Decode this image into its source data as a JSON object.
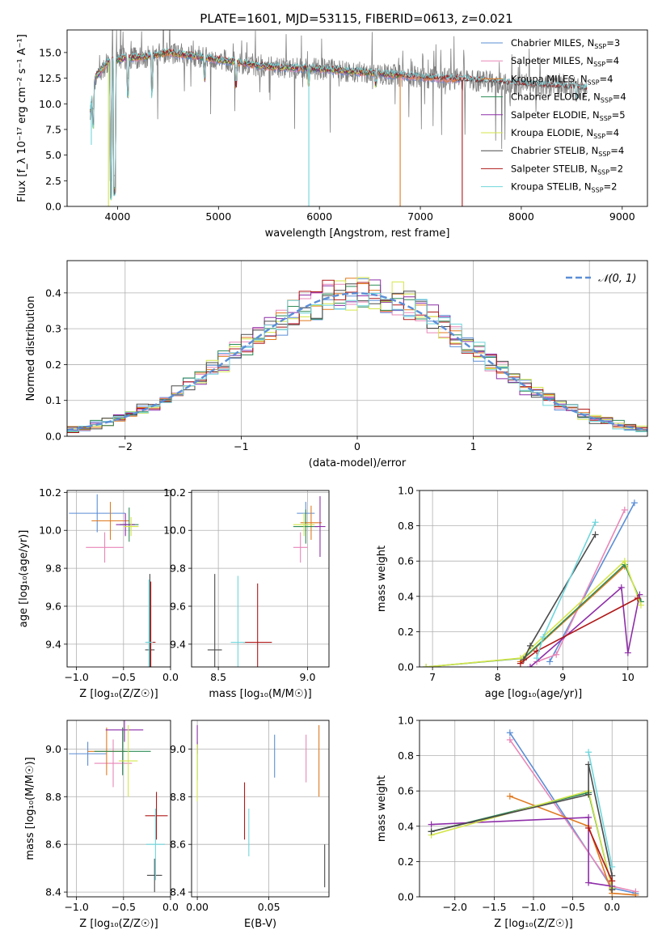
{
  "figure_title": "PLATE=1601, MJD=53115, FIBERID=0613, z=0.021",
  "colors": {
    "chabrier_miles": "#5b8ed6",
    "salpeter_miles": "#e887b8",
    "kroupa_miles": "#e07a20",
    "chabrier_elodie": "#2e8b57",
    "salpeter_elodie": "#8e2ea8",
    "kroupa_elodie": "#d4e64a",
    "chabrier_stelib": "#4a4a4a",
    "salpeter_stelib": "#b01818",
    "kroupa_stelib": "#6fd6dc",
    "data": "#808080"
  },
  "chart_data": [
    {
      "id": "spectrum",
      "type": "line",
      "xlabel": "wavelength [Angstrom, rest frame]",
      "ylabel": "Flux [f_λ 10⁻¹⁷ erg cm⁻² s⁻¹ A⁻¹]",
      "xlim": [
        3500,
        9250
      ],
      "ylim": [
        0,
        17.2
      ],
      "xticks": [
        4000,
        5000,
        6000,
        7000,
        8000,
        9000
      ],
      "yticks": [
        0.0,
        2.5,
        5.0,
        7.5,
        10.0,
        12.5,
        15.0
      ],
      "legend_loc": "right",
      "legend": [
        {
          "label": "Chabrier MILES, N",
          "sub": "SSP",
          "eq": "=3",
          "color_key": "chabrier_miles"
        },
        {
          "label": "Salpeter MILES, N",
          "sub": "SSP",
          "eq": "=4",
          "color_key": "salpeter_miles"
        },
        {
          "label": "Kroupa MILES, N",
          "sub": "SSP",
          "eq": "=4",
          "color_key": "kroupa_miles"
        },
        {
          "label": "Chabrier ELODIE, N",
          "sub": "SSP",
          "eq": "=4",
          "color_key": "chabrier_elodie"
        },
        {
          "label": "Salpeter ELODIE, N",
          "sub": "SSP",
          "eq": "=5",
          "color_key": "salpeter_elodie"
        },
        {
          "label": "Kroupa ELODIE, N",
          "sub": "SSP",
          "eq": "=4",
          "color_key": "kroupa_elodie"
        },
        {
          "label": "Chabrier STELIB, N",
          "sub": "SSP",
          "eq": "=4",
          "color_key": "chabrier_stelib"
        },
        {
          "label": "Salpeter STELIB, N",
          "sub": "SSP",
          "eq": "=2",
          "color_key": "salpeter_stelib"
        },
        {
          "label": "Kroupa STELIB, N",
          "sub": "SSP",
          "eq": "=2",
          "color_key": "kroupa_stelib"
        }
      ],
      "continuum": [
        [
          3730,
          9.5
        ],
        [
          3780,
          12.6
        ],
        [
          3900,
          14.0
        ],
        [
          4050,
          14.4
        ],
        [
          4300,
          14.6
        ],
        [
          4500,
          15.0
        ],
        [
          5000,
          14.3
        ],
        [
          5500,
          13.6
        ],
        [
          6000,
          13.4
        ],
        [
          6500,
          13.0
        ],
        [
          7000,
          12.6
        ],
        [
          7500,
          12.3
        ],
        [
          8000,
          11.9
        ],
        [
          8500,
          11.6
        ],
        [
          8650,
          11.5
        ]
      ],
      "models_end": {
        "miles": 7400,
        "elodie": 6800,
        "stelib": 8650
      },
      "model_dips": [
        [
          3934,
          1.0
        ],
        [
          3969,
          1.5
        ],
        [
          3760,
          8.0
        ],
        [
          4102,
          11.0
        ],
        [
          4340,
          11.0
        ],
        [
          4861,
          12.5
        ],
        [
          5175,
          12.0
        ],
        [
          5892,
          12.2
        ],
        [
          6563,
          12.0
        ],
        [
          8542,
          10.5
        ],
        [
          8662,
          10.5
        ]
      ],
      "model_spikes": [
        [
          3910,
          0.0,
          "kroupa_elodie"
        ],
        [
          5895,
          0.0,
          "kroupa_stelib"
        ],
        [
          6800,
          0.0,
          "kroupa_miles"
        ],
        [
          7415,
          0.0,
          "salpeter_stelib"
        ],
        [
          3740,
          6.0,
          "kroupa_stelib"
        ]
      ]
    },
    {
      "id": "residual_hist",
      "type": "histogram",
      "xlabel": "(data-model)/error",
      "ylabel": "Normed distribution",
      "xlim": [
        -2.5,
        2.5
      ],
      "ylim": [
        0,
        0.49
      ],
      "xticks": [
        -2,
        -1,
        0,
        1,
        2
      ],
      "yticks": [
        0.0,
        0.1,
        0.2,
        0.3,
        0.4
      ],
      "legend_loc": "upper right",
      "normal_label": "𝒩(0, 1)",
      "bin_width": 0.1
    },
    {
      "id": "age_vs_z",
      "type": "scatter",
      "xlabel": "Z [log₁₀(Z/Z☉)]",
      "ylabel": "age  [log₁₀(age/yr)]",
      "xlim": [
        -1.1,
        0.0
      ],
      "ylim": [
        9.28,
        10.21
      ],
      "xticks": [
        -1.0,
        -0.5,
        0.0
      ],
      "yticks": [
        9.4,
        9.6,
        9.8,
        10.0,
        10.2
      ],
      "points": [
        {
          "x": -0.78,
          "y": 10.09,
          "xerr": 0.3,
          "yerr": 0.1,
          "color_key": "chabrier_miles"
        },
        {
          "x": -0.7,
          "y": 9.91,
          "xerr": 0.2,
          "yerr": 0.08,
          "color_key": "salpeter_miles"
        },
        {
          "x": -0.64,
          "y": 10.05,
          "xerr": 0.2,
          "yerr": 0.1,
          "color_key": "kroupa_miles"
        },
        {
          "x": -0.44,
          "y": 10.03,
          "xerr": 0.1,
          "yerr": 0.09,
          "color_key": "chabrier_elodie"
        },
        {
          "x": -0.48,
          "y": 10.03,
          "xerr": 0.1,
          "yerr": 0.06,
          "color_key": "salpeter_elodie"
        },
        {
          "x": -0.42,
          "y": 10.02,
          "xerr": 0.08,
          "yerr": 0.05,
          "color_key": "kroupa_elodie"
        },
        {
          "x": -0.22,
          "y": 9.37,
          "xerr": 0.05,
          "yerr": 0.4,
          "color_key": "chabrier_stelib"
        },
        {
          "x": -0.21,
          "y": 9.41,
          "xerr": 0.05,
          "yerr": 0.32,
          "color_key": "salpeter_stelib"
        },
        {
          "x": -0.23,
          "y": 9.41,
          "xerr": 0.04,
          "yerr": 0.33,
          "color_key": "kroupa_stelib"
        }
      ]
    },
    {
      "id": "age_vs_mass",
      "type": "scatter",
      "xlabel": "mass [log₁₀(M/M☉)]",
      "ylabel": "",
      "xlim": [
        8.35,
        9.12
      ],
      "ylim": [
        9.28,
        10.21
      ],
      "xticks": [
        8.5,
        9.0
      ],
      "yticks": [
        9.4,
        9.6,
        9.8,
        10.0,
        10.2
      ],
      "points": [
        {
          "x": 8.99,
          "y": 10.09,
          "xerr": 0.05,
          "yerr": 0.06,
          "color_key": "chabrier_miles"
        },
        {
          "x": 8.96,
          "y": 9.91,
          "xerr": 0.04,
          "yerr": 0.08,
          "color_key": "salpeter_miles"
        },
        {
          "x": 9.02,
          "y": 10.04,
          "xerr": 0.06,
          "yerr": 0.09,
          "color_key": "kroupa_miles"
        },
        {
          "x": 8.99,
          "y": 10.02,
          "xerr": 0.07,
          "yerr": 0.09,
          "color_key": "chabrier_elodie"
        },
        {
          "x": 9.07,
          "y": 10.02,
          "xerr": 0.03,
          "yerr": 0.16,
          "color_key": "salpeter_elodie"
        },
        {
          "x": 8.98,
          "y": 10.03,
          "xerr": 0.06,
          "yerr": 0.06,
          "color_key": "kroupa_elodie"
        },
        {
          "x": 8.48,
          "y": 9.37,
          "xerr": 0.04,
          "yerr": 0.4,
          "color_key": "chabrier_stelib"
        },
        {
          "x": 8.72,
          "y": 9.41,
          "xerr": 0.08,
          "yerr": 0.31,
          "color_key": "salpeter_stelib"
        },
        {
          "x": 8.61,
          "y": 9.41,
          "xerr": 0.04,
          "yerr": 0.35,
          "color_key": "kroupa_stelib"
        }
      ]
    },
    {
      "id": "weight_vs_age",
      "type": "line",
      "xlabel": "age  [log₁₀(age/yr)]",
      "ylabel": "mass weight",
      "xlim": [
        6.8,
        10.3
      ],
      "ylim": [
        0,
        1.0
      ],
      "xticks": [
        7,
        8,
        9,
        10
      ],
      "yticks": [
        0.0,
        0.2,
        0.4,
        0.6,
        0.8,
        1.0
      ],
      "series": [
        {
          "color_key": "chabrier_miles",
          "points": [
            [
              8.8,
              0.03
            ],
            [
              10.1,
              0.93
            ]
          ]
        },
        {
          "color_key": "salpeter_miles",
          "points": [
            [
              8.6,
              0.03
            ],
            [
              8.9,
              0.07
            ],
            [
              9.95,
              0.89
            ]
          ]
        },
        {
          "color_key": "kroupa_miles",
          "points": [
            [
              8.35,
              0.03
            ],
            [
              9.95,
              0.57
            ]
          ]
        },
        {
          "color_key": "chabrier_elodie",
          "points": [
            [
              6.9,
              0.0
            ],
            [
              8.4,
              0.05
            ],
            [
              9.95,
              0.58
            ],
            [
              10.2,
              0.37
            ]
          ]
        },
        {
          "color_key": "salpeter_elodie",
          "points": [
            [
              8.5,
              0.0
            ],
            [
              9.9,
              0.45
            ],
            [
              10.0,
              0.08
            ],
            [
              10.18,
              0.41
            ]
          ]
        },
        {
          "color_key": "kroupa_elodie",
          "points": [
            [
              6.9,
              0.0
            ],
            [
              8.35,
              0.05
            ],
            [
              9.95,
              0.6
            ],
            [
              10.2,
              0.35
            ]
          ]
        },
        {
          "color_key": "chabrier_stelib",
          "points": [
            [
              8.4,
              0.04
            ],
            [
              8.5,
              0.12
            ],
            [
              9.5,
              0.75
            ]
          ]
        },
        {
          "color_key": "salpeter_stelib",
          "points": [
            [
              8.35,
              0.02
            ],
            [
              8.6,
              0.09
            ],
            [
              10.15,
              0.39
            ]
          ]
        },
        {
          "color_key": "kroupa_stelib",
          "points": [
            [
              8.6,
              0.05
            ],
            [
              8.7,
              0.17
            ],
            [
              9.5,
              0.82
            ]
          ]
        }
      ]
    },
    {
      "id": "mass_vs_z",
      "type": "scatter",
      "xlabel": "Z [log₁₀(Z/Z☉)]",
      "ylabel": "mass [log₁₀(M/M☉)]",
      "xlim": [
        -1.1,
        0.0
      ],
      "ylim": [
        8.38,
        9.12
      ],
      "xticks": [
        -1.0,
        -0.5,
        0.0
      ],
      "yticks": [
        8.4,
        8.6,
        8.8,
        9.0
      ],
      "points": [
        {
          "x": -0.88,
          "y": 8.98,
          "xerr": 0.2,
          "yerr": 0.05,
          "color_key": "chabrier_miles"
        },
        {
          "x": -0.61,
          "y": 8.94,
          "xerr": 0.2,
          "yerr": 0.1,
          "color_key": "salpeter_miles"
        },
        {
          "x": -0.68,
          "y": 8.99,
          "xerr": 0.2,
          "yerr": 0.1,
          "color_key": "kroupa_miles"
        },
        {
          "x": -0.51,
          "y": 8.99,
          "xerr": 0.3,
          "yerr": 0.1,
          "color_key": "chabrier_elodie"
        },
        {
          "x": -0.49,
          "y": 9.08,
          "xerr": 0.2,
          "yerr": 0.05,
          "color_key": "salpeter_elodie"
        },
        {
          "x": -0.45,
          "y": 8.95,
          "xerr": 0.1,
          "yerr": 0.15,
          "color_key": "kroupa_elodie"
        },
        {
          "x": -0.17,
          "y": 8.47,
          "xerr": 0.08,
          "yerr": 0.07,
          "color_key": "chabrier_stelib"
        },
        {
          "x": -0.15,
          "y": 8.72,
          "xerr": 0.12,
          "yerr": 0.1,
          "color_key": "salpeter_stelib"
        },
        {
          "x": -0.16,
          "y": 8.6,
          "xerr": 0.1,
          "yerr": 0.15,
          "color_key": "kroupa_stelib"
        }
      ]
    },
    {
      "id": "mass_vs_ebv",
      "type": "scatter",
      "xlabel": "E(B-V)",
      "ylabel": "",
      "xlim": [
        -0.004,
        0.092
      ],
      "ylim": [
        8.38,
        9.12
      ],
      "xticks": [
        0.0,
        0.05
      ],
      "yticks": [
        8.4,
        8.6,
        8.8,
        9.0
      ],
      "points": [
        {
          "x": 0.054,
          "y": 8.97,
          "xerr": 0.0,
          "yerr": 0.09,
          "color_key": "chabrier_miles"
        },
        {
          "x": 0.076,
          "y": 8.96,
          "xerr": 0.0,
          "yerr": 0.1,
          "color_key": "salpeter_miles"
        },
        {
          "x": 0.085,
          "y": 8.95,
          "xerr": 0.0,
          "yerr": 0.15,
          "color_key": "kroupa_miles"
        },
        {
          "x": 0.0,
          "y": 8.95,
          "xerr": 0.0,
          "yerr": 0.08,
          "color_key": "chabrier_elodie"
        },
        {
          "x": 0.0,
          "y": 9.04,
          "xerr": 0.0,
          "yerr": 0.06,
          "color_key": "salpeter_elodie"
        },
        {
          "x": 0.0,
          "y": 8.9,
          "xerr": 0.0,
          "yerr": 0.12,
          "color_key": "kroupa_elodie"
        },
        {
          "x": 0.089,
          "y": 8.51,
          "xerr": 0.0,
          "yerr": 0.09,
          "color_key": "chabrier_stelib"
        },
        {
          "x": 0.033,
          "y": 8.74,
          "xerr": 0.0,
          "yerr": 0.12,
          "color_key": "salpeter_stelib"
        },
        {
          "x": 0.036,
          "y": 8.65,
          "xerr": 0.0,
          "yerr": 0.1,
          "color_key": "kroupa_stelib"
        }
      ]
    },
    {
      "id": "weight_vs_z",
      "type": "line",
      "xlabel": "Z [log₁₀(Z/Z☉)]",
      "ylabel": "mass weight",
      "xlim": [
        -2.45,
        0.45
      ],
      "ylim": [
        0,
        1.0
      ],
      "xticks": [
        -2.0,
        -1.5,
        -1.0,
        -0.5,
        0.0
      ],
      "yticks": [
        0.0,
        0.2,
        0.4,
        0.6,
        0.8,
        1.0
      ],
      "series": [
        {
          "color_key": "chabrier_miles",
          "points": [
            [
              -1.3,
              0.93
            ],
            [
              0.0,
              0.05
            ],
            [
              0.3,
              0.02
            ]
          ]
        },
        {
          "color_key": "salpeter_miles",
          "points": [
            [
              -1.3,
              0.89
            ],
            [
              0.0,
              0.06
            ],
            [
              0.3,
              0.03
            ]
          ]
        },
        {
          "color_key": "kroupa_miles",
          "points": [
            [
              -1.3,
              0.57
            ],
            [
              -0.3,
              0.4
            ],
            [
              0.0,
              0.02
            ],
            [
              0.3,
              0.01
            ]
          ]
        },
        {
          "color_key": "chabrier_elodie",
          "points": [
            [
              -2.3,
              0.37
            ],
            [
              -0.3,
              0.59
            ],
            [
              0.0,
              0.05
            ]
          ]
        },
        {
          "color_key": "salpeter_elodie",
          "points": [
            [
              -2.3,
              0.41
            ],
            [
              -0.3,
              0.45
            ],
            [
              -0.3,
              0.08
            ],
            [
              0.0,
              0.06
            ]
          ]
        },
        {
          "color_key": "kroupa_elodie",
          "points": [
            [
              -2.3,
              0.35
            ],
            [
              -0.3,
              0.6
            ],
            [
              0.0,
              0.05
            ]
          ]
        },
        {
          "color_key": "chabrier_stelib",
          "points": [
            [
              -2.3,
              0.37
            ],
            [
              -0.3,
              0.58
            ],
            [
              -0.3,
              0.75
            ],
            [
              0.0,
              0.12
            ],
            [
              0.0,
              0.04
            ]
          ]
        },
        {
          "color_key": "salpeter_stelib",
          "points": [
            [
              -0.3,
              0.39
            ],
            [
              0.0,
              0.09
            ]
          ]
        },
        {
          "color_key": "kroupa_stelib",
          "points": [
            [
              -0.3,
              0.82
            ],
            [
              0.0,
              0.17
            ]
          ]
        }
      ]
    }
  ]
}
